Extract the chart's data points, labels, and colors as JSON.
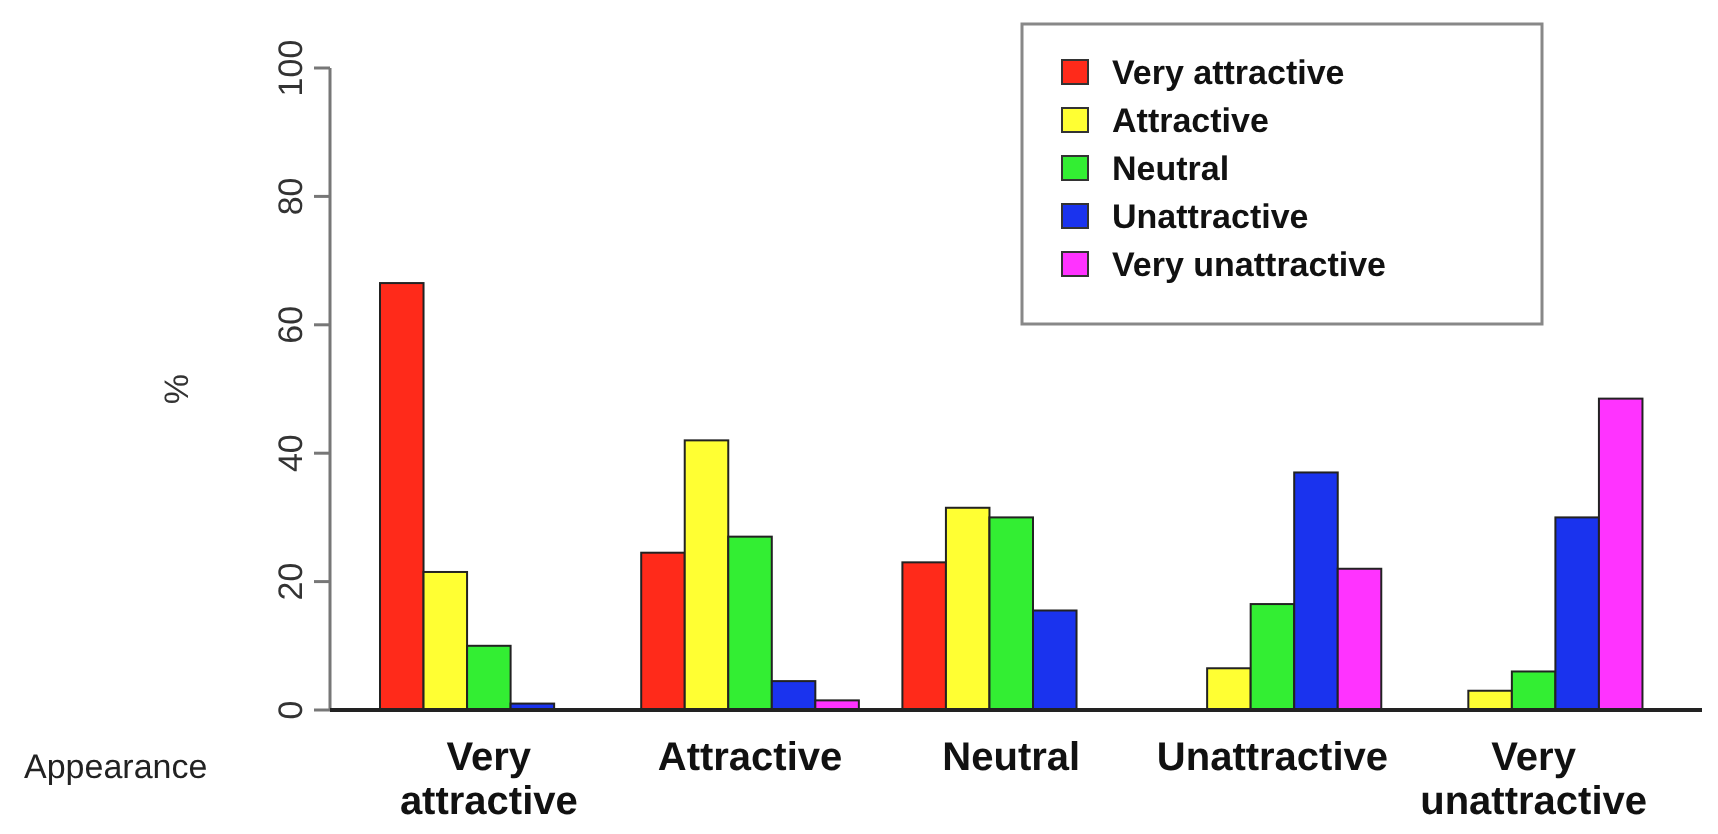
{
  "chart_data": {
    "type": "bar",
    "xlabel": "Appearance",
    "ylabel": "%",
    "categories": [
      "Very attractive",
      "Attractive",
      "Neutral",
      "Unattractive",
      "Very unattractive"
    ],
    "series": [
      {
        "name": "Very attractive",
        "color": "#ff2a1a",
        "values": [
          66.5,
          24.5,
          23,
          0,
          0
        ]
      },
      {
        "name": "Attractive",
        "color": "#ffff33",
        "values": [
          21.5,
          42,
          31.5,
          6.5,
          3
        ]
      },
      {
        "name": "Neutral",
        "color": "#33ee33",
        "values": [
          10,
          27,
          30,
          16.5,
          6
        ]
      },
      {
        "name": "Unattractive",
        "color": "#1a33ee",
        "values": [
          1,
          4.5,
          15.5,
          37,
          30
        ]
      },
      {
        "name": "Very unattractive",
        "color": "#ff33ff",
        "values": [
          0,
          1.5,
          0,
          22,
          48.5
        ]
      }
    ],
    "ylim": [
      0,
      100
    ],
    "yticks": [
      0,
      20,
      40,
      60,
      80,
      100
    ],
    "legend": "top right"
  }
}
